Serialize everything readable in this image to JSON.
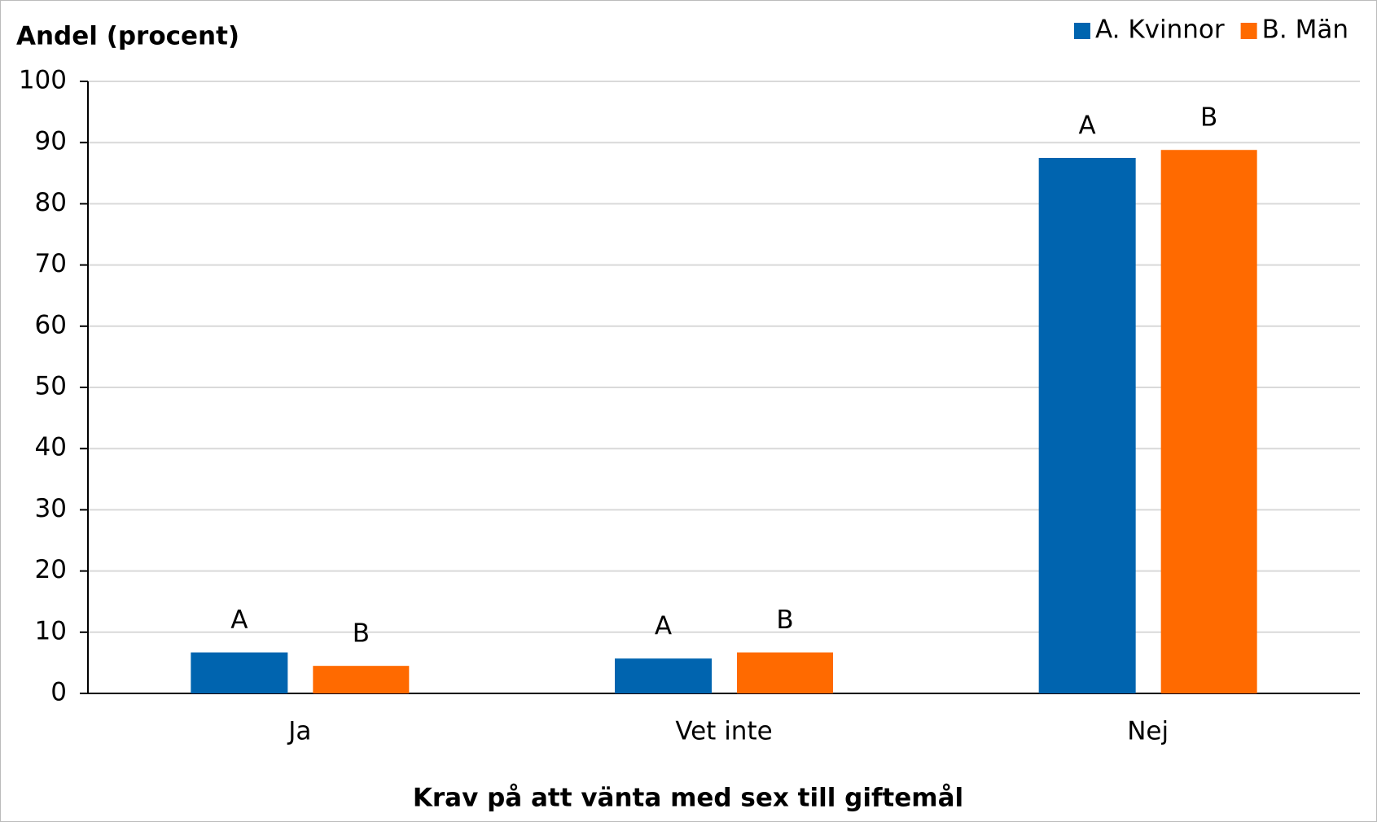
{
  "chart_data": {
    "type": "bar",
    "y_label": "Andel (procent)",
    "x_label": "Krav på att vänta med sex till giftemål",
    "categories": [
      "Ja",
      "Vet inte",
      "Nej"
    ],
    "series": [
      {
        "name": "A. Kvinnor",
        "color": "#0064af",
        "values": [
          6.7,
          5.7,
          87.5
        ],
        "value_labels": [
          "A",
          "A",
          "A"
        ]
      },
      {
        "name": "B. Män",
        "color": "#ff6a00",
        "values": [
          4.5,
          6.7,
          88.8
        ],
        "value_labels": [
          "B",
          "B",
          "B"
        ]
      }
    ],
    "ylim": [
      0,
      100
    ],
    "yticks": [
      0,
      10,
      20,
      30,
      40,
      50,
      60,
      70,
      80,
      90,
      100
    ],
    "grid": true,
    "legend": "top-right"
  }
}
